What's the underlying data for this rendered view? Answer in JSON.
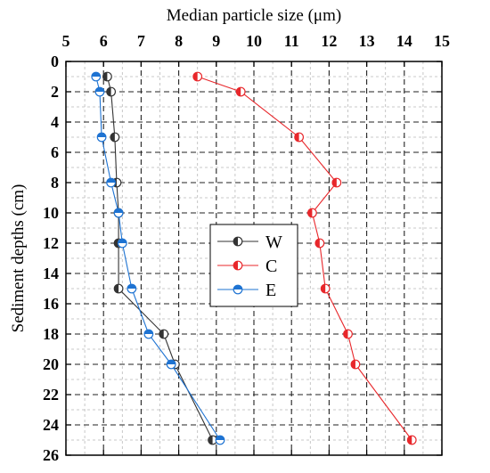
{
  "chart_data": {
    "type": "line",
    "xlabel": "Median particle size (μm)",
    "ylabel": "Sediment depths (cm)",
    "xaxis_position": "top",
    "yaxis_inverted": true,
    "xlim": [
      5,
      15
    ],
    "ylim": [
      0,
      26
    ],
    "xticks": [
      5,
      6,
      7,
      8,
      9,
      10,
      11,
      12,
      13,
      14,
      15
    ],
    "yticks": [
      0,
      2,
      4,
      6,
      8,
      10,
      12,
      14,
      16,
      18,
      20,
      22,
      24,
      26
    ],
    "grid": true,
    "legend_position": "center",
    "series": [
      {
        "name": "W",
        "color": "#333333",
        "points": [
          [
            6.1,
            1
          ],
          [
            6.2,
            2
          ],
          [
            6.3,
            5
          ],
          [
            6.35,
            8
          ],
          [
            6.4,
            10
          ],
          [
            6.4,
            12
          ],
          [
            6.4,
            15
          ],
          [
            7.6,
            18
          ],
          [
            7.9,
            20
          ],
          [
            8.9,
            25
          ]
        ]
      },
      {
        "name": "C",
        "color": "#e8272b",
        "points": [
          [
            8.5,
            1
          ],
          [
            9.65,
            2
          ],
          [
            11.2,
            5
          ],
          [
            12.2,
            8
          ],
          [
            11.55,
            10
          ],
          [
            11.75,
            12
          ],
          [
            11.9,
            15
          ],
          [
            12.5,
            18
          ],
          [
            12.7,
            20
          ],
          [
            14.2,
            25
          ]
        ]
      },
      {
        "name": "E",
        "color": "#1e73d2",
        "points": [
          [
            5.8,
            1
          ],
          [
            5.9,
            2
          ],
          [
            5.95,
            5
          ],
          [
            6.2,
            8
          ],
          [
            6.4,
            10
          ],
          [
            6.5,
            12
          ],
          [
            6.75,
            15
          ],
          [
            7.2,
            18
          ],
          [
            7.8,
            20
          ],
          [
            9.1,
            25
          ]
        ]
      }
    ]
  }
}
